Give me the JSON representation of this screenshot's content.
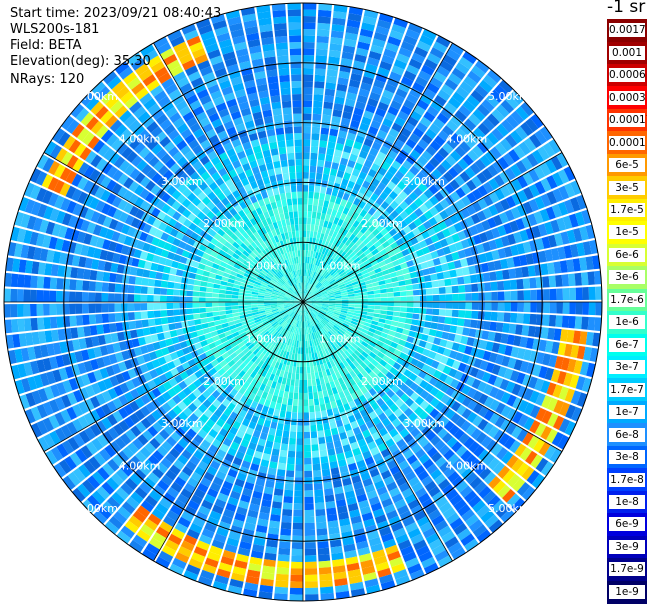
{
  "header": {
    "start_time": "Start time: 2023/09/21 08:40:43",
    "instrument": "WLS200s-181",
    "field": "Field: BETA",
    "elevation": "Elevation(deg): 35.30",
    "nrays": "NRays: 120"
  },
  "colorbar": {
    "units": "-1 sr",
    "labels": [
      "0.0017",
      "0.001",
      "0.0006",
      "0.0003",
      "0.00017",
      "0.0001",
      "6e-5",
      "3e-5",
      "1.7e-5",
      "1e-5",
      "6e-6",
      "3e-6",
      "1.7e-6",
      "1e-6",
      "6e-7",
      "3e-7",
      "1.7e-7",
      "1e-7",
      "6e-8",
      "3e-8",
      "1.7e-8",
      "1e-8",
      "6e-9",
      "3e-9",
      "1.7e-9",
      "1e-9"
    ],
    "colors": [
      "#8b0000",
      "#a00000",
      "#cc0000",
      "#ff0000",
      "#ff3300",
      "#ff6600",
      "#ff9900",
      "#ffcc00",
      "#ffee00",
      "#ffff00",
      "#d8ff33",
      "#a8ff66",
      "#66ff99",
      "#33ffcc",
      "#00ffee",
      "#00eeff",
      "#00ccff",
      "#00aaff",
      "#1e90ff",
      "#0066ff",
      "#0040ff",
      "#0020ee",
      "#0000dd",
      "#0000bb",
      "#00008b",
      "#000066"
    ]
  },
  "chart_data": {
    "type": "heatmap",
    "projection": "polar-ppi",
    "field": "BETA",
    "elevation_deg": 35.3,
    "nrays": 120,
    "range_rings_km": [
      1.0,
      2.0,
      3.0,
      4.0,
      5.0
    ],
    "ring_labels": [
      "1.00km",
      "2.00km",
      "3.00km",
      "4.00km",
      "5.00km"
    ],
    "azimuth_spokes_deg": [
      0,
      30,
      60,
      90,
      120,
      150,
      180,
      210,
      240,
      270,
      300,
      330
    ],
    "max_range_km": 5.0,
    "colorbar_range": [
      1e-09,
      0.0017
    ],
    "value_regions": [
      {
        "range_km": [
          0,
          1.8
        ],
        "beta": "1.7e-7",
        "description_color": "cyan"
      },
      {
        "range_km": [
          1.8,
          5.0
        ],
        "beta": "3e-8 to 1e-7",
        "description_color": "blue/cyan"
      },
      {
        "range_km": [
          4.4,
          4.7
        ],
        "beta": "1e-5 to 6e-5",
        "azimuth_deg": "around 300-335, 100-130, 160-220"
      }
    ]
  }
}
